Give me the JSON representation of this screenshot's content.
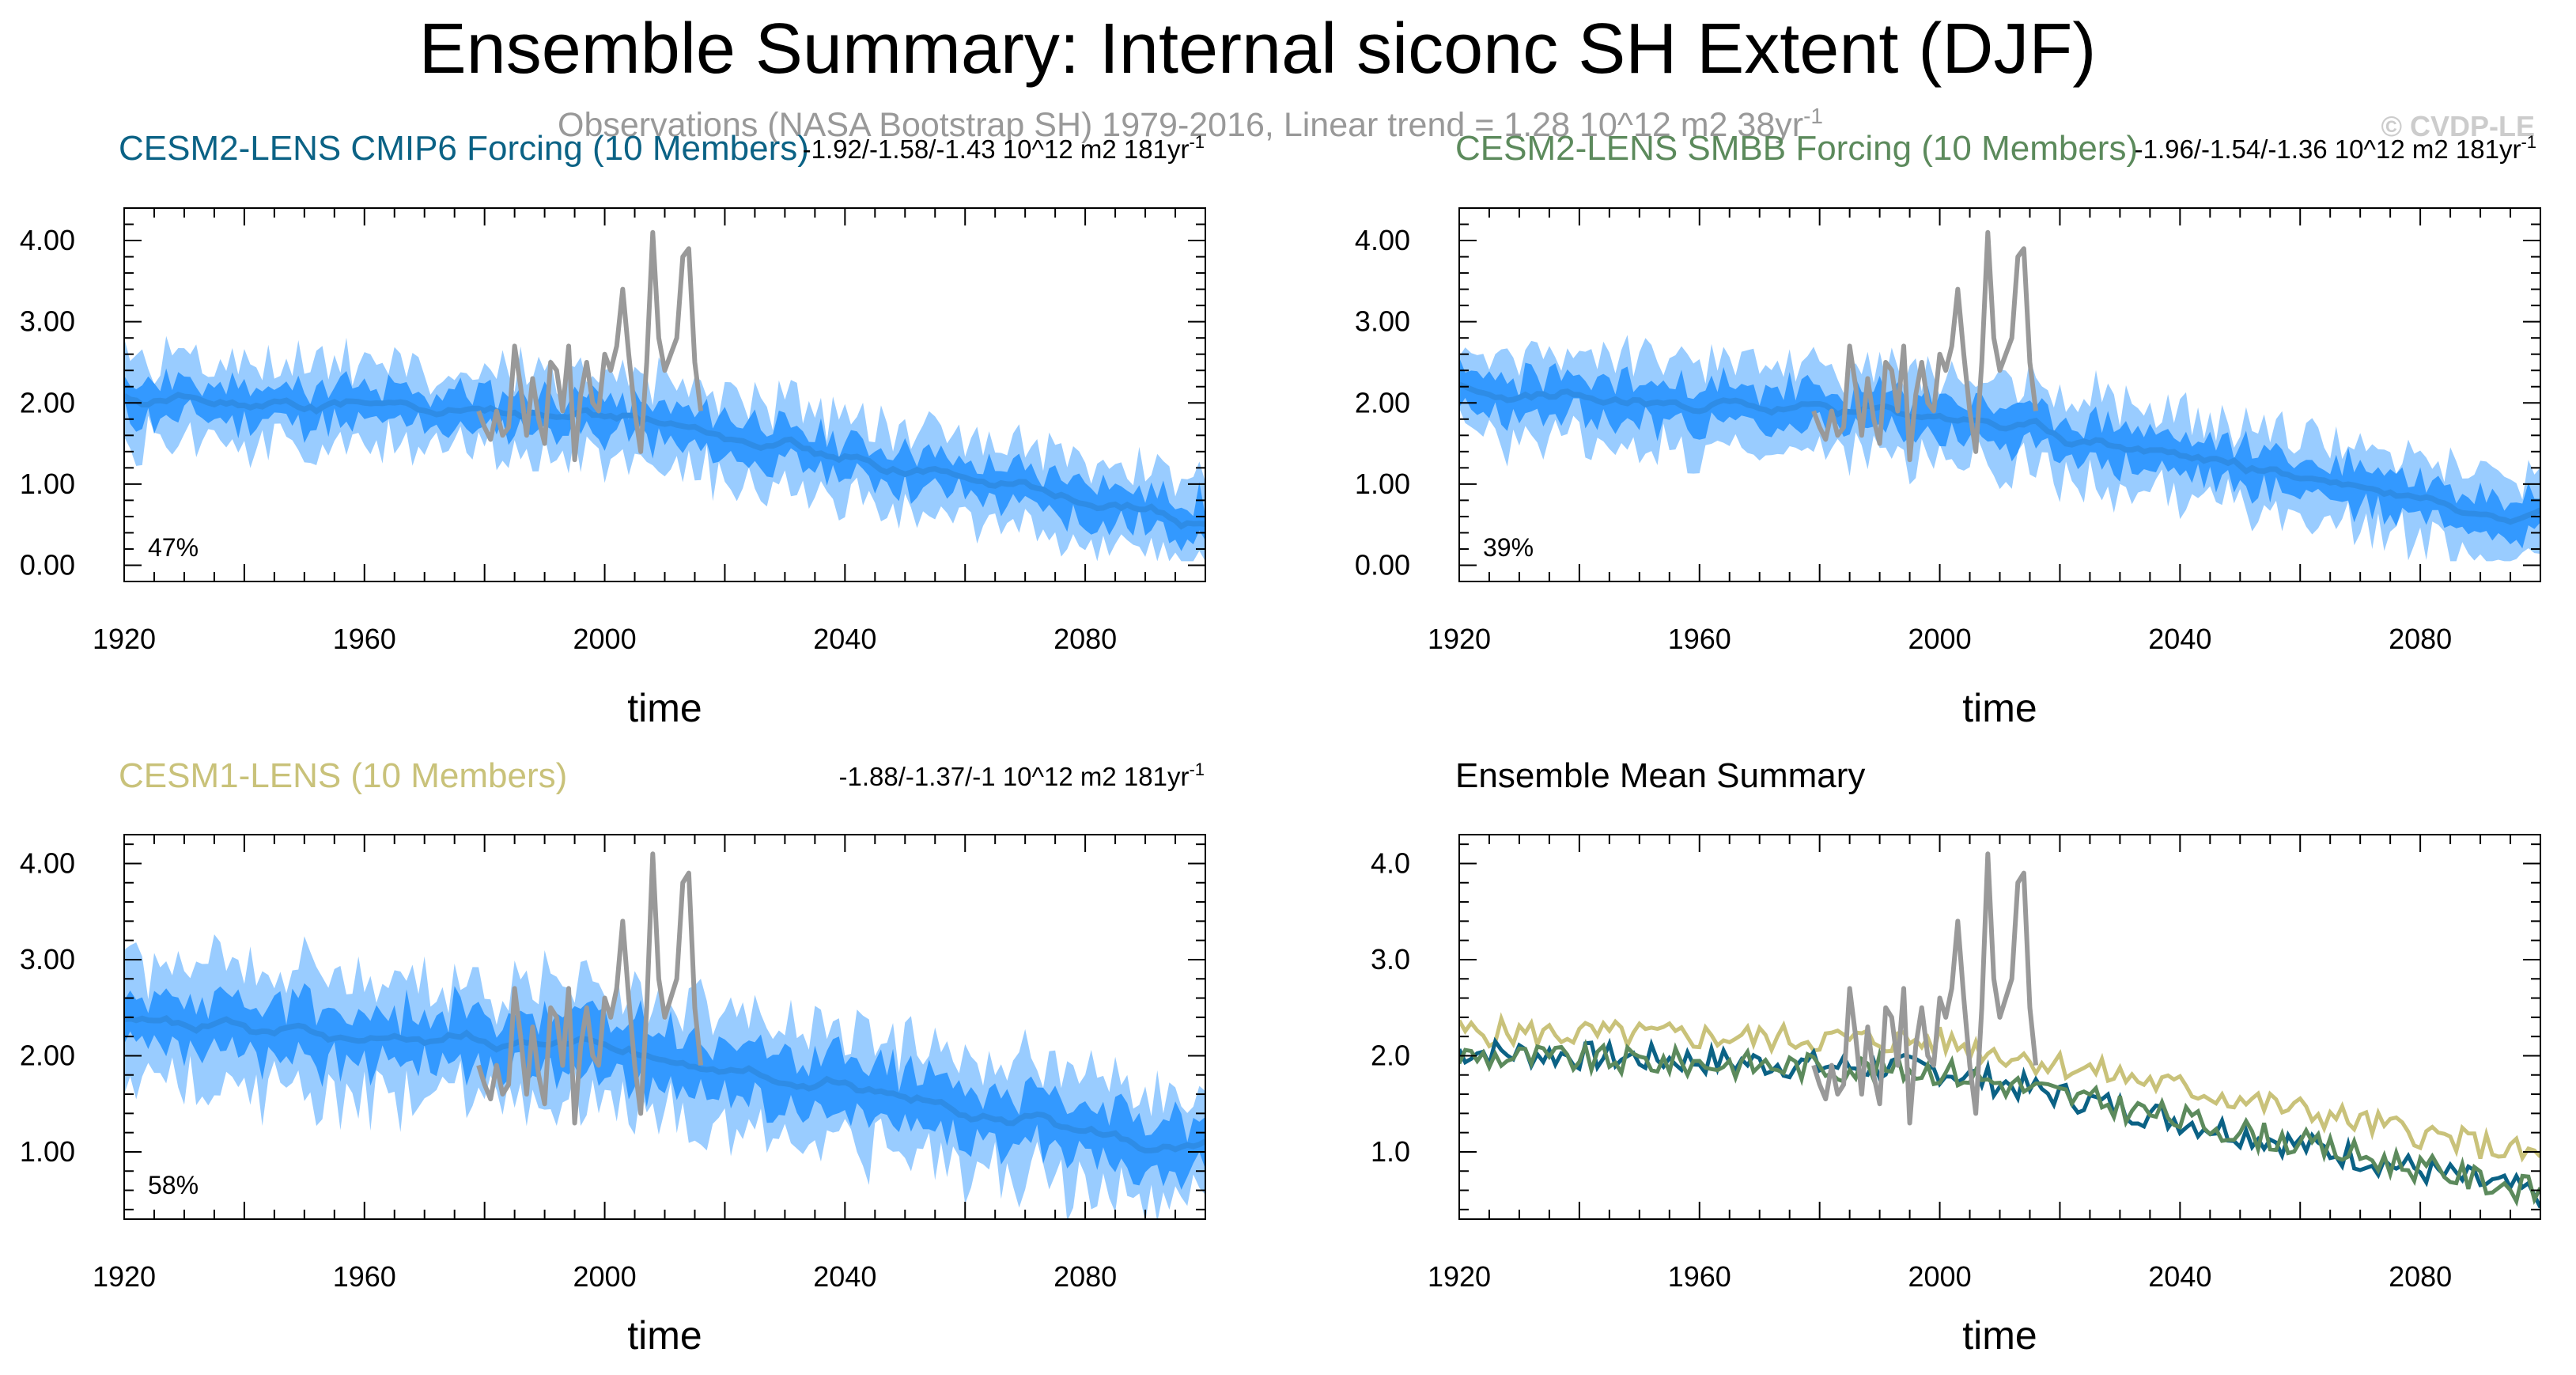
{
  "figure": {
    "title": "Ensemble Summary: Internal siconc SH Extent (DJF)",
    "subtitle": "Observations (NASA Bootstrap SH) 1979-2016, Linear trend = 1.28 10^12 m2 38yr",
    "subtitle_sup": "-1",
    "watermark": "© CVDP-LE"
  },
  "colors": {
    "obs": "#999999",
    "band_outer": "#99ccff",
    "band_inner": "#3399ff",
    "mean_line": "#2e8ce6",
    "cmip6": "#0b6285",
    "smbb": "#5c8a5c",
    "cesm1": "#c9c27a",
    "axis": "#000000",
    "title_text": "#000000",
    "subtitle_text": "#999999",
    "watermark_text": "#cccccc"
  },
  "chart_data": [
    {
      "type": "area",
      "title": "CESM2-LENS CMIP6 Forcing (10 Members)",
      "title_color": "#0b6285",
      "trend_label": "-1.92/-1.58/-1.43 10^12 m2 181yr",
      "trend_sup": "-1",
      "percent_label": "47%",
      "xlabel": "time",
      "ylabel": "",
      "xlim": [
        1920,
        2100
      ],
      "ylim": [
        -0.2,
        4.4
      ],
      "xticks": [
        1920,
        1960,
        2000,
        2040,
        2080
      ],
      "xtick_labels": [
        "1920",
        "1960",
        "2000",
        "2040",
        "2080"
      ],
      "yticks": [
        0,
        1,
        2,
        3,
        4
      ],
      "ytick_labels": [
        "0.00",
        "1.00",
        "2.00",
        "3.00",
        "4.00"
      ],
      "years_start": 1920,
      "years_end": 2100,
      "mean_start": 2.05,
      "mean_mid": 1.85,
      "mean_end": 0.55,
      "spread_outer": 0.5,
      "spread_inner": 0.22,
      "seed": 11
    },
    {
      "type": "area",
      "title": "CESM2-LENS SMBB Forcing (10 Members)",
      "title_color": "#5c8a5c",
      "trend_label": "-1.96/-1.54/-1.36 10^12 m2 181yr",
      "trend_sup": "-1",
      "percent_label": "39%",
      "xlabel": "time",
      "ylabel": "",
      "xlim": [
        1920,
        2100
      ],
      "ylim": [
        -0.2,
        4.4
      ],
      "xticks": [
        1920,
        1960,
        2000,
        2040,
        2080
      ],
      "xtick_labels": [
        "1920",
        "1960",
        "2000",
        "2040",
        "2080"
      ],
      "yticks": [
        0,
        1,
        2,
        3,
        4
      ],
      "ytick_labels": [
        "0.00",
        "1.00",
        "2.00",
        "3.00",
        "4.00"
      ],
      "years_start": 1920,
      "years_end": 2100,
      "mean_start": 2.1,
      "mean_mid": 1.85,
      "mean_end": 0.6,
      "spread_outer": 0.52,
      "spread_inner": 0.24,
      "seed": 23
    },
    {
      "type": "area",
      "title": "CESM1-LENS (10 Members)",
      "title_color": "#c9c27a",
      "trend_label": "-1.88/-1.37/-1 10^12 m2 181yr",
      "trend_sup": "-1",
      "percent_label": "58%",
      "xlabel": "time",
      "ylabel": "",
      "xlim": [
        1920,
        2100
      ],
      "ylim": [
        0.3,
        4.3
      ],
      "xticks": [
        1920,
        1960,
        2000,
        2040,
        2080
      ],
      "xtick_labels": [
        "1920",
        "1960",
        "2000",
        "2040",
        "2080"
      ],
      "yticks": [
        1,
        2,
        3,
        4
      ],
      "ytick_labels": [
        "1.00",
        "2.00",
        "3.00",
        "4.00"
      ],
      "years_start": 1920,
      "years_end": 2100,
      "mean_start": 2.3,
      "mean_mid": 2.1,
      "mean_end": 1.0,
      "spread_outer": 0.6,
      "spread_inner": 0.28,
      "seed": 37
    },
    {
      "type": "line",
      "title": "Ensemble Mean Summary",
      "title_color": "#000000",
      "xlabel": "time",
      "ylabel": "",
      "xlim": [
        1920,
        2100
      ],
      "ylim": [
        0.3,
        4.3
      ],
      "xticks": [
        1920,
        1960,
        2000,
        2040,
        2080
      ],
      "xtick_labels": [
        "1920",
        "1960",
        "2000",
        "2040",
        "2080"
      ],
      "yticks": [
        1,
        2,
        3,
        4
      ],
      "ytick_labels": [
        "1.0",
        "2.0",
        "3.0",
        "4.0"
      ],
      "series": [
        {
          "name": "CESM1-LENS",
          "color": "#c9c27a",
          "mean_start": 2.25,
          "mean_mid": 2.15,
          "mean_end": 0.95,
          "seed": 5
        },
        {
          "name": "CESM2-LENS CMIP6",
          "color": "#0b6285",
          "mean_start": 2.05,
          "mean_mid": 1.85,
          "mean_end": 0.55,
          "seed": 7
        },
        {
          "name": "CESM2-LENS SMBB",
          "color": "#5c8a5c",
          "mean_start": 2.0,
          "mean_mid": 1.85,
          "mean_end": 0.58,
          "seed": 9
        }
      ]
    }
  ],
  "observations": {
    "name": "NASA Bootstrap SH",
    "years": [
      1979,
      1980,
      1981,
      1982,
      1983,
      1984,
      1985,
      1986,
      1987,
      1988,
      1989,
      1990,
      1991,
      1992,
      1993,
      1994,
      1995,
      1996,
      1997,
      1998,
      1999,
      2000,
      2001,
      2002,
      2003,
      2004,
      2005,
      2006,
      2007,
      2008,
      2009,
      2010,
      2011,
      2012,
      2013,
      2014,
      2015,
      2016
    ],
    "values": [
      1.9,
      1.7,
      1.55,
      1.9,
      1.6,
      1.7,
      2.7,
      2.2,
      1.6,
      2.3,
      1.8,
      1.5,
      2.5,
      2.4,
      1.9,
      2.7,
      1.3,
      2.1,
      2.5,
      2.0,
      1.9,
      2.6,
      2.4,
      2.7,
      3.4,
      2.6,
      1.9,
      1.4,
      2.5,
      4.1,
      2.8,
      2.4,
      2.6,
      2.8,
      3.8,
      3.9,
      2.5,
      1.9
    ]
  }
}
